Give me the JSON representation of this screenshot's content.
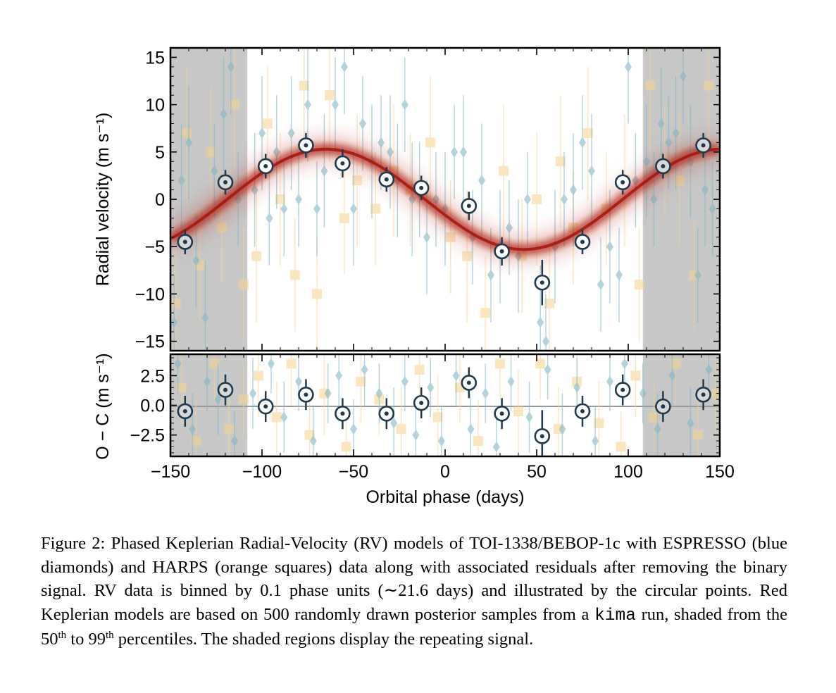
{
  "chart_data": [
    {
      "type": "scatter",
      "panel": "main",
      "ylabel": "Radial velocity (m s⁻¹)",
      "xlim": [
        -150,
        150
      ],
      "ylim": [
        -16,
        16
      ],
      "yticks": [
        15,
        10,
        5,
        0,
        -5,
        -10,
        -15
      ],
      "ytick_labels": [
        "15",
        "10",
        "5",
        "0",
        "−5",
        "−10",
        "−15"
      ],
      "shaded_x_ranges": [
        [
          -150,
          -108
        ],
        [
          108,
          150
        ]
      ],
      "model": {
        "type": "keplerian_band",
        "offset": 0,
        "amplitude": 5.3,
        "period": 216.0,
        "phase_peak": -65,
        "color": "#b01a0a"
      },
      "series": [
        {
          "marker": "binned-circle",
          "x": [
            -142,
            -120,
            -98,
            -76,
            -56,
            -32,
            -13,
            13,
            31,
            53,
            75,
            97,
            119,
            141
          ],
          "y": [
            -4.5,
            1.8,
            3.5,
            5.7,
            3.8,
            2.1,
            1.2,
            -0.7,
            -5.5,
            -8.8,
            -4.5,
            1.8,
            3.5,
            5.7
          ],
          "yerr": [
            1.3,
            1.3,
            1.3,
            1.3,
            1.5,
            1.3,
            1.3,
            1.5,
            1.5,
            2.4,
            1.3,
            1.3,
            1.3,
            1.3
          ]
        },
        {
          "marker": "diamond",
          "color": "#7fb7c6",
          "x": [
            -148,
            -144,
            -140,
            -136,
            -131,
            -126,
            -121,
            -117,
            -113,
            -104,
            -100,
            -96,
            -92,
            -88,
            -84,
            -80,
            -75,
            -70,
            -66,
            -60,
            -55,
            -50,
            -45,
            -40,
            -35,
            -30,
            -26,
            -22,
            -18,
            -14,
            -10,
            -5,
            0,
            5,
            10,
            15,
            20,
            25,
            30,
            35,
            40,
            45,
            52,
            55,
            60,
            65,
            70,
            75,
            80,
            85,
            90,
            95,
            100,
            104,
            110,
            114,
            118,
            122,
            126,
            130,
            134,
            138,
            142,
            146
          ],
          "y": [
            -13,
            2,
            6,
            -6.5,
            -12.5,
            3,
            9,
            14,
            0,
            1,
            7,
            -2,
            5,
            -1,
            7,
            0,
            10,
            -1,
            3,
            10,
            14,
            -1,
            8,
            4,
            6,
            5,
            2,
            10,
            0,
            1,
            -4,
            0,
            -1,
            5,
            5,
            -4,
            2,
            -8,
            -5,
            -3,
            -6,
            0,
            -13,
            -15,
            -5,
            0,
            1,
            6,
            3,
            -9,
            -5,
            -8,
            14,
            2,
            4,
            0,
            8,
            6,
            7,
            13,
            4,
            -8,
            1,
            -1
          ],
          "yerr": [
            5,
            6,
            6,
            5,
            6,
            5,
            6,
            5,
            5,
            6,
            6,
            5,
            6,
            5,
            6,
            5,
            6,
            5,
            6,
            5,
            5,
            6,
            5,
            6,
            5,
            6,
            6,
            5,
            6,
            5,
            6,
            5,
            6,
            5,
            6,
            5,
            6,
            5,
            6,
            5,
            6,
            5,
            6,
            5,
            6,
            5,
            6,
            5,
            6,
            5,
            6,
            5,
            6,
            5,
            6,
            5,
            6,
            5,
            6,
            5,
            6,
            5,
            6,
            5
          ]
        },
        {
          "marker": "square",
          "color": "#f7d38c",
          "x": [
            -147,
            -141,
            -134,
            -128,
            -122,
            -115,
            -110,
            -103,
            -97,
            -90,
            -82,
            -77,
            -70,
            -63,
            -55,
            -48,
            -38,
            -28,
            -19,
            -8,
            3,
            12,
            22,
            32,
            42,
            50,
            57,
            63,
            70,
            78,
            88,
            98,
            106,
            112,
            120,
            128,
            136,
            144
          ],
          "y": [
            -11,
            7,
            -7,
            5,
            -3,
            10,
            -9,
            -6,
            8,
            0,
            -8,
            12,
            -10,
            11,
            -2,
            2,
            -1,
            3,
            1,
            6,
            -4,
            -6,
            -12,
            3,
            -6,
            0,
            -11,
            4,
            -3,
            7,
            -1,
            2,
            -9,
            12,
            4,
            2,
            -8,
            12
          ],
          "yerr": [
            6,
            7,
            6,
            7,
            6,
            7,
            6,
            7,
            6,
            7,
            6,
            7,
            6,
            7,
            6,
            7,
            6,
            7,
            6,
            7,
            6,
            7,
            6,
            7,
            6,
            7,
            6,
            7,
            6,
            7,
            6,
            7,
            6,
            7,
            6,
            7,
            6,
            7
          ]
        }
      ]
    },
    {
      "type": "scatter",
      "panel": "residuals",
      "xlabel": "Orbital phase (days)",
      "ylabel": "O − C (m s⁻¹)",
      "xlim": [
        -150,
        150
      ],
      "ylim": [
        -4.3,
        4.3
      ],
      "xticks": [
        -150,
        -100,
        -50,
        0,
        50,
        100,
        150
      ],
      "xtick_labels": [
        "−150",
        "−100",
        "−50",
        "0",
        "50",
        "100",
        "150"
      ],
      "yticks": [
        2.5,
        0.0,
        -2.5
      ],
      "ytick_labels": [
        "2.5",
        "0.0",
        "−2.5"
      ],
      "shaded_x_ranges": [
        [
          -150,
          -108
        ],
        [
          108,
          150
        ]
      ],
      "zero_line": true,
      "series": [
        {
          "marker": "binned-circle",
          "x": [
            -142,
            -120,
            -98,
            -76,
            -56,
            -32,
            -13,
            13,
            31,
            53,
            75,
            97,
            119,
            141
          ],
          "y": [
            -0.5,
            1.3,
            -0.1,
            0.9,
            -0.7,
            -0.7,
            0.2,
            1.9,
            -0.7,
            -2.6,
            -0.5,
            1.3,
            -0.1,
            0.9
          ],
          "yerr": [
            1.3,
            1.3,
            1.3,
            1.3,
            1.3,
            1.3,
            1.3,
            1.3,
            1.3,
            2.2,
            1.3,
            1.3,
            1.3,
            1.3
          ]
        },
        {
          "marker": "diamond",
          "color": "#7fb7c6",
          "x": [
            -146,
            -138,
            -130,
            -124,
            -115,
            -105,
            -95,
            -88,
            -80,
            -72,
            -64,
            -58,
            -50,
            -44,
            -36,
            -28,
            -22,
            -16,
            -8,
            -2,
            6,
            14,
            22,
            28,
            36,
            46,
            56,
            64,
            72,
            82,
            90,
            98,
            108,
            116,
            124,
            134,
            144
          ],
          "y": [
            3.5,
            -2,
            2,
            0.5,
            -3,
            1,
            3.5,
            -1,
            2,
            -3,
            1,
            2.5,
            -2,
            3,
            1,
            -1.5,
            2,
            -2.5,
            1.5,
            -3,
            2.5,
            -2,
            1,
            -3.5,
            2,
            -1,
            3,
            -2,
            1.5,
            -3,
            2,
            3.5,
            1,
            -2,
            2.5,
            -1.5,
            3
          ],
          "yerr": [
            2.5,
            3,
            2.5,
            3,
            2.5,
            3,
            2.5,
            3,
            2.5,
            3,
            2.5,
            3,
            2.5,
            3,
            2.5,
            3,
            2.5,
            3,
            2.5,
            3,
            2.5,
            3,
            2.5,
            3,
            2.5,
            3,
            2.5,
            3,
            2.5,
            3,
            2.5,
            3,
            2.5,
            3,
            2.5,
            3,
            2.5
          ]
        },
        {
          "marker": "square",
          "color": "#f7d38c",
          "x": [
            -144,
            -136,
            -126,
            -118,
            -110,
            -102,
            -92,
            -84,
            -74,
            -66,
            -54,
            -46,
            -36,
            -24,
            -14,
            -4,
            8,
            18,
            30,
            40,
            52,
            62,
            72,
            84,
            96,
            104,
            114,
            126,
            138,
            148
          ],
          "y": [
            1.5,
            -3,
            3.5,
            -2,
            0.5,
            2.5,
            -1,
            3.5,
            -2.5,
            1,
            -3.5,
            2,
            0.5,
            -2,
            3,
            -1,
            1.5,
            -3,
            3.5,
            -0.5,
            3.5,
            -2,
            2,
            -1.5,
            -3.5,
            2.5,
            -1,
            3.5,
            -2.5,
            1
          ],
          "yerr": [
            3,
            3.5,
            3,
            3.5,
            3,
            3.5,
            3,
            3.5,
            3,
            3.5,
            3,
            3.5,
            3,
            3.5,
            3,
            3.5,
            3,
            3.5,
            3,
            3.5,
            3,
            3.5,
            3,
            3.5,
            3,
            3.5,
            3,
            3.5,
            3,
            3.5
          ]
        }
      ]
    }
  ],
  "caption": {
    "p1": "Figure 2:  Phased Keplerian Radial-Velocity (RV) models of TOI-1338/BEBOP-1c with ESPRESSO (blue diamonds) and HARPS (orange squares) data along with associated residuals after removing the binary signal. RV data is binned by ",
    "n1": "0.1",
    "p2": " phase units (",
    "n2": "∼21.6",
    "p3": " days) and illustrated by the circular points. Red Keplerian models are based on ",
    "n3": "500",
    "p4": " randomly drawn posterior samples from a ",
    "code": "kima",
    "p5": " run, shaded from the ",
    "n4": "50",
    "sup1": "th",
    "p6": " to ",
    "n5": "99",
    "sup2": "th",
    "p7": " percentiles. The shaded regions display the repeating signal."
  }
}
